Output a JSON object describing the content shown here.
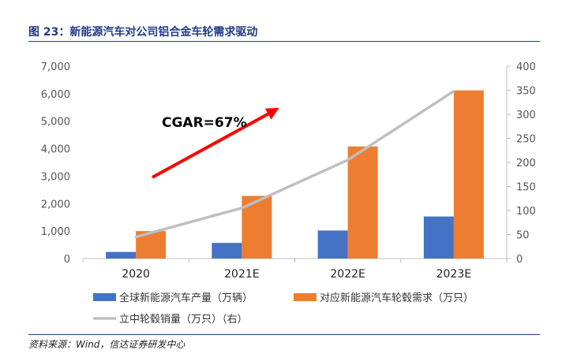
{
  "figure": {
    "title": "图 23：新能源汽车对公司铝合金车轮需求驱动",
    "source": "资料来源：Wind，信达证券研发中心"
  },
  "chart_data": {
    "type": "bar",
    "categories": [
      "2020",
      "2021E",
      "2022E",
      "2023E"
    ],
    "series": [
      {
        "name": "全球新能源汽车产量（万辆）",
        "type": "bar",
        "axis": "left",
        "color": "#4472c4",
        "values": [
          240,
          570,
          1020,
          1530
        ]
      },
      {
        "name": "对应新能源汽车轮毂需求（万只）",
        "type": "bar",
        "axis": "left",
        "color": "#ed7d31",
        "values": [
          1000,
          2280,
          4080,
          6120
        ]
      },
      {
        "name": "立中轮毂销量（万只）（右）",
        "type": "line",
        "axis": "right",
        "color": "#bfbfbf",
        "values": [
          45,
          105,
          205,
          348
        ]
      }
    ],
    "y_left": {
      "min": 0,
      "max": 7000,
      "step": 1000,
      "ticks": [
        "0",
        "1,000",
        "2,000",
        "3,000",
        "4,000",
        "5,000",
        "6,000",
        "7,000"
      ]
    },
    "y_right": {
      "min": 0,
      "max": 400,
      "step": 50,
      "ticks": [
        "0",
        "50",
        "100",
        "150",
        "200",
        "250",
        "300",
        "350",
        "400"
      ]
    },
    "annotation": {
      "text": "CGAR=67%",
      "arrow_color": "#ff0000"
    },
    "legend_position": "bottom",
    "grid": false
  }
}
